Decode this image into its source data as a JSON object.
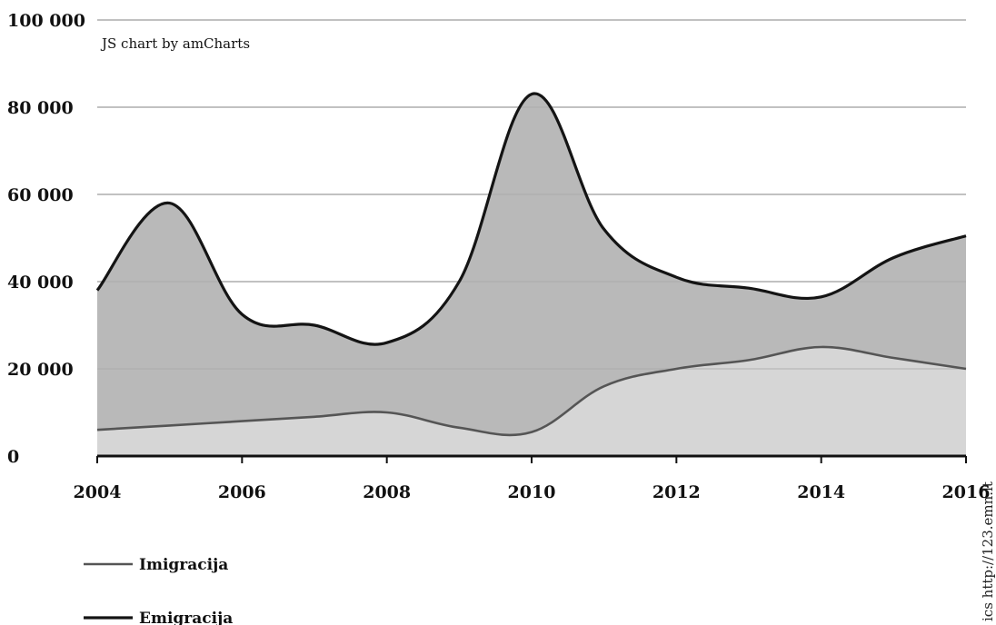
{
  "chart_data": {
    "type": "area",
    "credit": "JS chart by amCharts",
    "x": [
      2004,
      2005,
      2006,
      2007,
      2008,
      2009,
      2010,
      2011,
      2012,
      2013,
      2014,
      2015,
      2016
    ],
    "xticks": [
      2004,
      2006,
      2008,
      2010,
      2012,
      2014,
      2016
    ],
    "yticks": [
      0,
      20000,
      40000,
      60000,
      80000,
      100000
    ],
    "ytick_labels": [
      "0",
      "20 000",
      "40 000",
      "60 000",
      "80 000",
      "100 000"
    ],
    "xlim": [
      2004,
      2016
    ],
    "ylim": [
      0,
      100000
    ],
    "grid": true,
    "legend_position": "bottom-left",
    "series": [
      {
        "name": "Imigracija",
        "values": [
          6000,
          7000,
          8000,
          9000,
          10000,
          6500,
          5500,
          16000,
          20000,
          22000,
          25000,
          22500,
          20000
        ],
        "line_color": "#555555",
        "fill_color": "#d6d6d6"
      },
      {
        "name": "Emigracija",
        "values": [
          38000,
          58000,
          32500,
          30000,
          26000,
          40000,
          83000,
          52000,
          41000,
          38500,
          36500,
          45500,
          50500
        ],
        "line_color": "#141414",
        "fill_color": "#b9b9b9"
      }
    ]
  },
  "watermark": "ics http://123.emn.lt"
}
